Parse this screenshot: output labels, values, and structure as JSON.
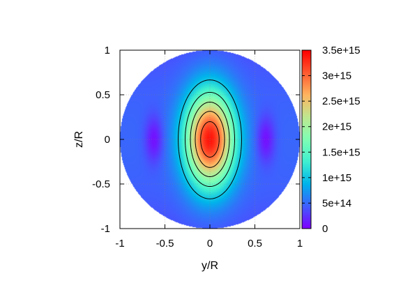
{
  "chart_data": {
    "type": "heatmap",
    "title": "",
    "xlabel": "y/R",
    "ylabel": "z/R",
    "xlim": [
      -1,
      1
    ],
    "ylim": [
      -1,
      1
    ],
    "grid": true,
    "domain_shape": "circle",
    "domain_radius": 1,
    "x_ticks": [
      {
        "value": -1,
        "label": "-1"
      },
      {
        "value": -0.5,
        "label": "-0.5"
      },
      {
        "value": 0,
        "label": "0"
      },
      {
        "value": 0.5,
        "label": "0.5"
      },
      {
        "value": 1,
        "label": "1"
      }
    ],
    "y_ticks": [
      {
        "value": 1,
        "label": "1"
      },
      {
        "value": 0.5,
        "label": "0.5"
      },
      {
        "value": 0,
        "label": "0"
      },
      {
        "value": -0.5,
        "label": "-0.5"
      },
      {
        "value": -1,
        "label": "-1"
      }
    ],
    "colorbar": {
      "range": [
        0,
        3500000000000000.0
      ],
      "ticks": [
        {
          "value": 3500000000000000.0,
          "label": "3.5e+15"
        },
        {
          "value": 3000000000000000.0,
          "label": "3e+15"
        },
        {
          "value": 2500000000000000.0,
          "label": "2.5e+15"
        },
        {
          "value": 2000000000000000.0,
          "label": "2e+15"
        },
        {
          "value": 1500000000000000.0,
          "label": "1.5e+15"
        },
        {
          "value": 1000000000000000.0,
          "label": "1e+15"
        },
        {
          "value": 500000000000000.0,
          "label": "5e+14"
        },
        {
          "value": 0,
          "label": "0"
        }
      ],
      "palette": "rainbow",
      "colors": [
        "#7f00ff",
        "#3f5ffe",
        "#00b4eb",
        "#40f0d0",
        "#80feb4",
        "#c0e890",
        "#ffb460",
        "#ff5a30",
        "#ff0000"
      ]
    },
    "contour_levels": [
      1000000000000000.0,
      1500000000000000.0,
      2000000000000000.0,
      2500000000000000.0,
      3000000000000000.0,
      3500000000000000.0
    ],
    "contour_color": "#000000",
    "field_features": {
      "peak": {
        "y": 0,
        "z": 0,
        "value": 3400000000000000.0
      },
      "minima": [
        {
          "y": -0.62,
          "z": 0,
          "value": 0
        },
        {
          "y": 0.62,
          "z": 0,
          "value": 0
        }
      ]
    }
  }
}
